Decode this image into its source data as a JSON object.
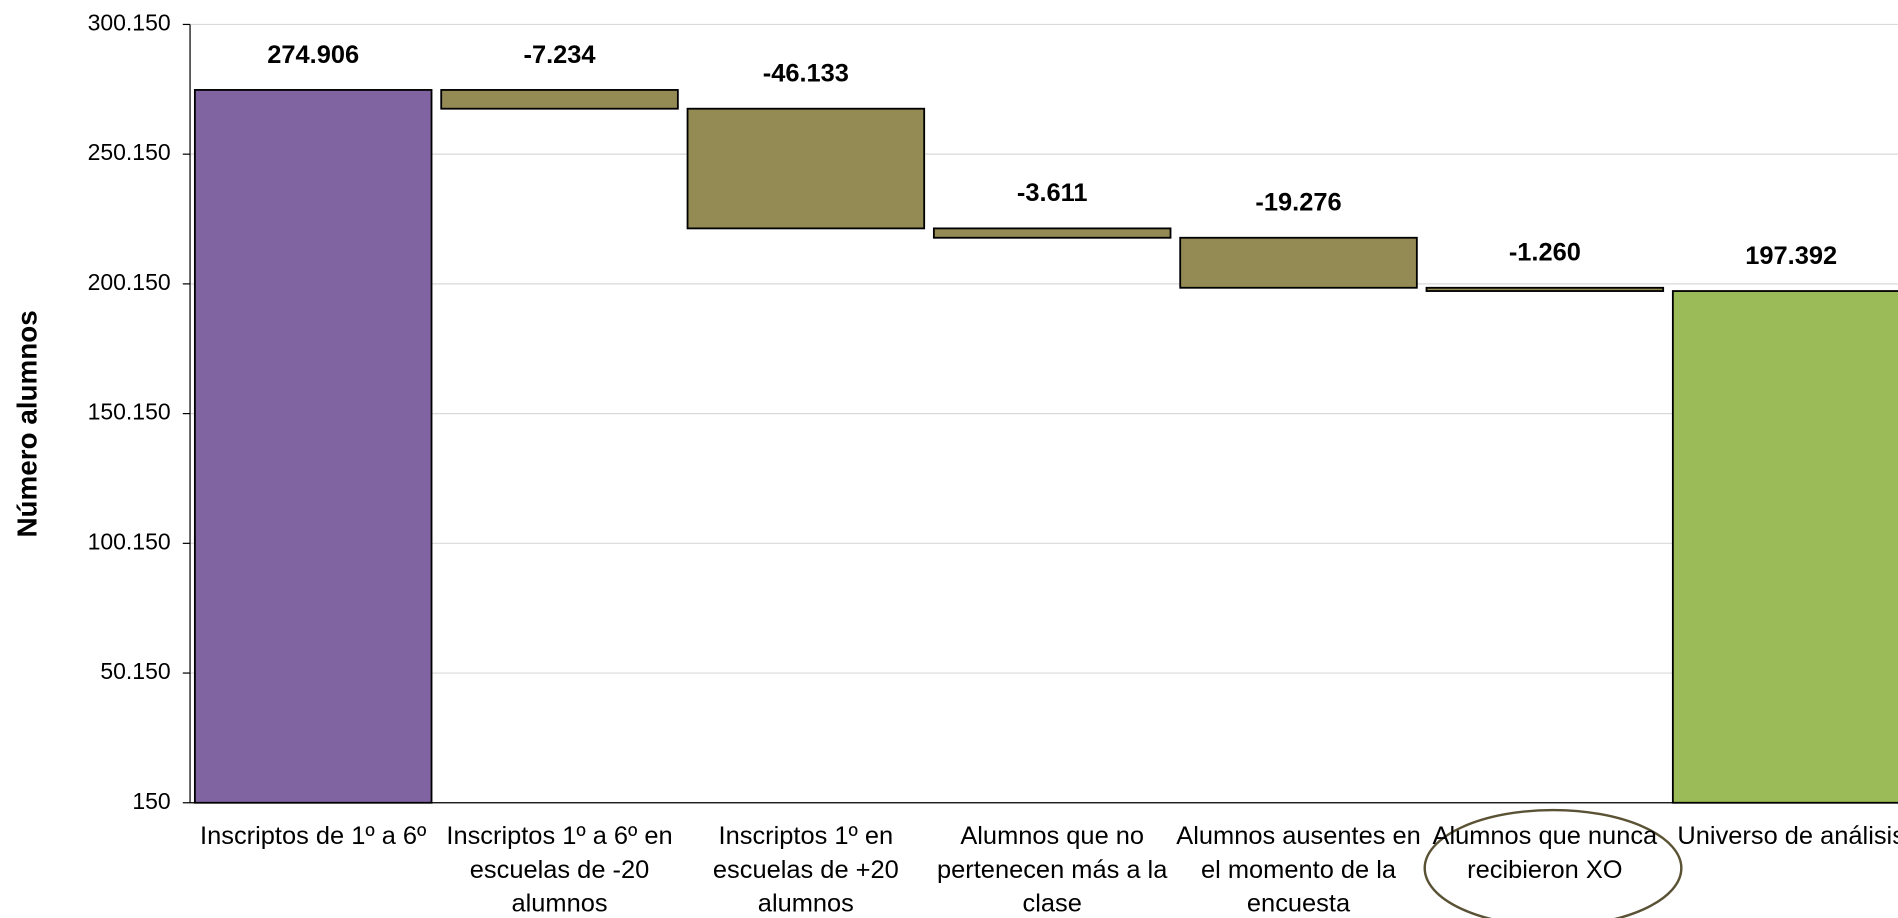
{
  "chart_data": {
    "type": "waterfall",
    "y_label": "Número alumnos",
    "categories": [
      "Inscriptos de 1º a 6º",
      "Inscriptos 1º a 6º en escuelas de -20 alumnos",
      "Inscriptos 1º en escuelas de +20 alumnos",
      "Alumnos que no pertenecen más a la clase",
      "Alumnos ausentes en el momento de la encuesta",
      "Alumnos que nunca recibieron XO",
      "Universo de análisis"
    ],
    "values": [
      274906,
      -7234,
      -46133,
      -3611,
      -19276,
      -1260,
      197392
    ],
    "value_labels": [
      "274.906",
      "-7.234",
      "-46.133",
      "-3.611",
      "-19.276",
      "-1.260",
      "197.392"
    ],
    "measure": [
      "absolute",
      "relative",
      "relative",
      "relative",
      "relative",
      "relative",
      "total"
    ],
    "colors": [
      "#8064a2",
      "#948a54",
      "#948a54",
      "#948a54",
      "#948a54",
      "#948a54",
      "#9bbb59"
    ],
    "ylim": [
      150,
      300150
    ],
    "yticks": [
      150,
      {
        "value": 50150,
        "label": "50.150"
      },
      {
        "value": 100150,
        "label": "100.150"
      },
      {
        "value": 150150,
        "label": "150.150"
      },
      {
        "value": 200150,
        "label": "200.150"
      },
      {
        "value": 250150,
        "label": "250.150"
      },
      {
        "value": 300150,
        "label": "300.150"
      }
    ],
    "grid": true
  }
}
